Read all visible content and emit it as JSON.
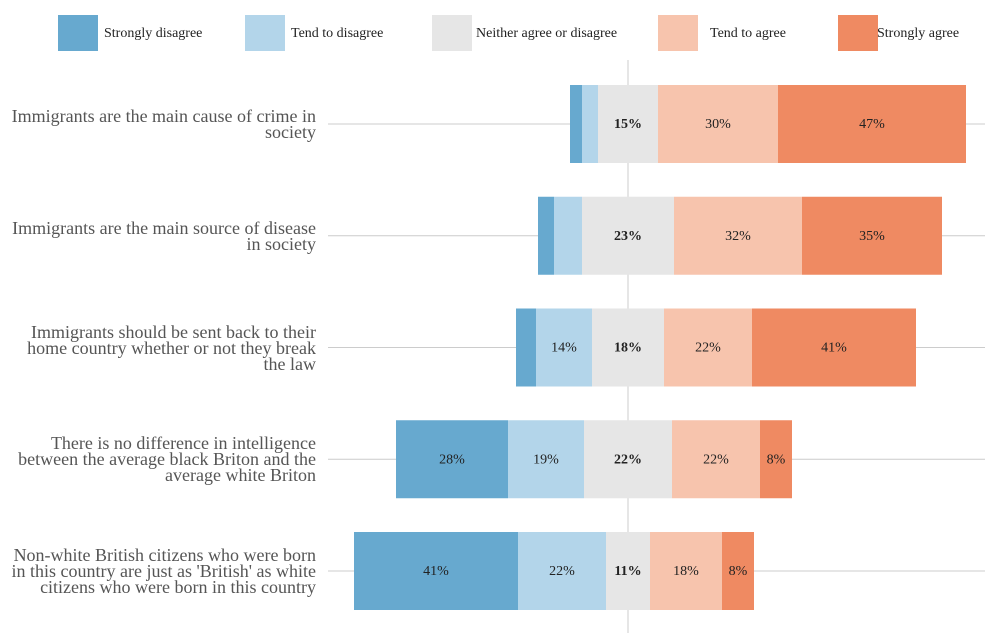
{
  "chart_data": {
    "type": "diverging_bar",
    "categories": [
      "Immigrants are the main cause of crime in society",
      "Immigrants are the main source of disease in society",
      "Immigrants should be sent back to their home country whether or not they break the law",
      "There is no difference in intelligence between the average black Briton and the average white Briton",
      "Non-white British citizens who were born in this country are just as 'British' as white citizens who were born in this country"
    ],
    "series": [
      {
        "name": "Strongly disagree",
        "color": "#67a9cf",
        "values": [
          3,
          4,
          5,
          28,
          41
        ],
        "value_labels": [
          null,
          null,
          null,
          "28%",
          "41%"
        ]
      },
      {
        "name": "Tend to disagree",
        "color": "#b3d5ea",
        "values": [
          4,
          7,
          14,
          19,
          22
        ],
        "value_labels": [
          null,
          null,
          "14%",
          "19%",
          "22%"
        ]
      },
      {
        "name": "Neither agree or disagree",
        "color": "#e6e6e6",
        "values": [
          15,
          23,
          18,
          22,
          11
        ],
        "value_labels": [
          "15%",
          "23%",
          "18%",
          "22%",
          "11%"
        ]
      },
      {
        "name": "Tend to agree",
        "color": "#f7c4ad",
        "values": [
          30,
          32,
          22,
          22,
          18
        ],
        "value_labels": [
          "30%",
          "32%",
          "22%",
          "22%",
          "18%"
        ]
      },
      {
        "name": "Strongly agree",
        "color": "#ef8a62",
        "values": [
          47,
          35,
          41,
          8,
          8
        ],
        "value_labels": [
          "47%",
          "35%",
          "41%",
          "8%",
          "8%"
        ]
      }
    ],
    "xlim": [
      -75,
      90
    ],
    "grid": true,
    "legend": "top"
  }
}
